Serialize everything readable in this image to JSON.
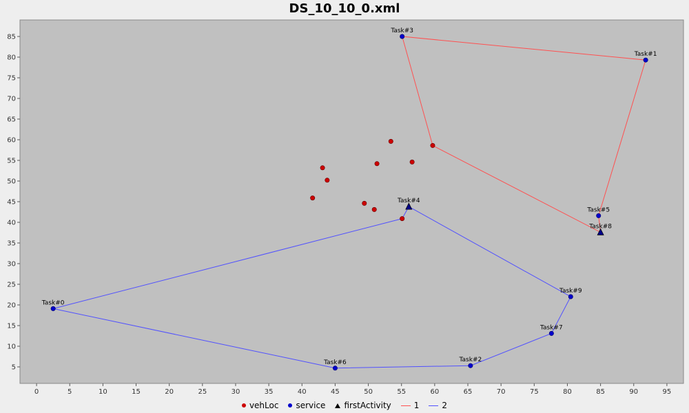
{
  "chart_data": {
    "type": "scatter",
    "title": "DS_10_10_0.xml",
    "xlabel": "",
    "ylabel": "",
    "xlim": [
      -2.5,
      97.5
    ],
    "ylim": [
      1,
      89
    ],
    "xticks": [
      0,
      5,
      10,
      15,
      20,
      25,
      30,
      35,
      40,
      45,
      50,
      55,
      60,
      65,
      70,
      75,
      80,
      85,
      90,
      95
    ],
    "yticks": [
      5,
      10,
      15,
      20,
      25,
      30,
      35,
      40,
      45,
      50,
      55,
      60,
      65,
      70,
      75,
      80,
      85
    ],
    "grid": false,
    "legend_position": "bottom",
    "background": "#c0c0c0",
    "vehLoc": {
      "name": "vehLoc",
      "color": "#cc0000",
      "points": [
        {
          "x": 53.4,
          "y": 59.6
        },
        {
          "x": 59.7,
          "y": 58.6
        },
        {
          "x": 56.6,
          "y": 54.6
        },
        {
          "x": 51.3,
          "y": 54.2
        },
        {
          "x": 43.1,
          "y": 53.2
        },
        {
          "x": 43.8,
          "y": 50.2
        },
        {
          "x": 41.6,
          "y": 45.9
        },
        {
          "x": 49.4,
          "y": 44.6
        },
        {
          "x": 50.9,
          "y": 43.1
        },
        {
          "x": 55.1,
          "y": 40.9
        }
      ]
    },
    "service": {
      "name": "service",
      "color": "#0000cc",
      "points": [
        {
          "label": "Task#0",
          "x": 2.5,
          "y": 19.1
        },
        {
          "label": "Task#1",
          "x": 91.8,
          "y": 79.3
        },
        {
          "label": "Task#2",
          "x": 65.4,
          "y": 5.3
        },
        {
          "label": "Task#3",
          "x": 55.1,
          "y": 85.0
        },
        {
          "label": "Task#5",
          "x": 84.7,
          "y": 41.6
        },
        {
          "label": "Task#6",
          "x": 45.0,
          "y": 4.7
        },
        {
          "label": "Task#7",
          "x": 77.6,
          "y": 13.1
        },
        {
          "label": "Task#9",
          "x": 80.5,
          "y": 22.0
        }
      ]
    },
    "firstActivity": {
      "name": "firstActivity",
      "color": "#000088",
      "points": [
        {
          "label": "Task#4",
          "x": 56.1,
          "y": 43.8
        },
        {
          "label": "Task#8",
          "x": 85.0,
          "y": 37.6
        }
      ]
    },
    "routes": [
      {
        "name": "1",
        "color": "#ff5050",
        "points": [
          {
            "x": 59.7,
            "y": 58.6
          },
          {
            "x": 55.1,
            "y": 85.0
          },
          {
            "x": 91.8,
            "y": 79.3
          },
          {
            "x": 84.7,
            "y": 41.6
          },
          {
            "x": 85.0,
            "y": 37.6
          },
          {
            "x": 59.7,
            "y": 58.6
          }
        ]
      },
      {
        "name": "2",
        "color": "#5050ff",
        "points": [
          {
            "x": 55.1,
            "y": 40.9
          },
          {
            "x": 56.1,
            "y": 43.8
          },
          {
            "x": 80.5,
            "y": 22.0
          },
          {
            "x": 77.6,
            "y": 13.1
          },
          {
            "x": 65.4,
            "y": 5.3
          },
          {
            "x": 45.0,
            "y": 4.7
          },
          {
            "x": 2.5,
            "y": 19.1
          },
          {
            "x": 55.1,
            "y": 40.9
          }
        ]
      }
    ]
  }
}
